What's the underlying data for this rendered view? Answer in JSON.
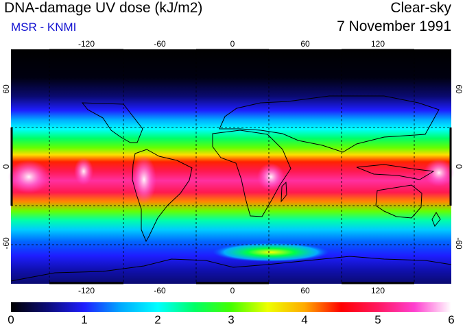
{
  "header": {
    "title": "DNA-damage UV dose (kJ/m2)",
    "subtitle": "MSR - KNMI",
    "mode": "Clear-sky",
    "date": "7 November 1991"
  },
  "map": {
    "lon_ticks": [
      "-120",
      "-60",
      "0",
      "60",
      "120"
    ],
    "lat_left_ticks": [
      "60",
      "0",
      "-60"
    ],
    "lat_right_ticks": [
      "60",
      "0",
      "-60"
    ]
  },
  "colorbar": {
    "min": 0,
    "max": 6,
    "labels": [
      "0",
      "1",
      "2",
      "3",
      "4",
      "5",
      "6"
    ],
    "colors": [
      "#000000",
      "#0c0c78",
      "#1e1eff",
      "#00aaff",
      "#00ffff",
      "#00ff66",
      "#44ff00",
      "#eeff00",
      "#ffaa00",
      "#ff0000",
      "#ff1860",
      "#ff40d0",
      "#ffffff"
    ]
  }
}
